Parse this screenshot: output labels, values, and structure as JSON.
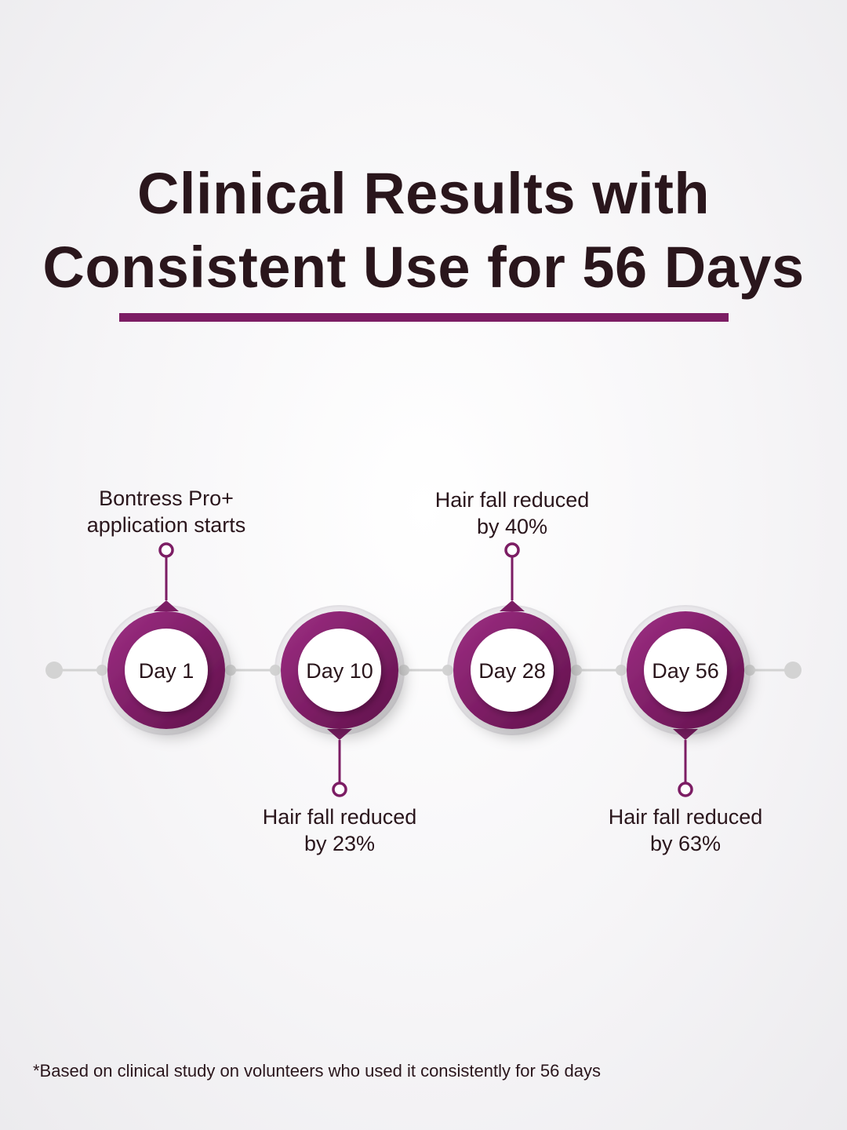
{
  "title": {
    "line1": "Clinical Results with",
    "line2": "Consistent Use for 56 Days"
  },
  "milestones": [
    {
      "day": "Day 1",
      "callout_line1": "Bontress Pro+",
      "callout_line2": "application starts",
      "position": "top"
    },
    {
      "day": "Day 10",
      "callout_line1": "Hair fall reduced",
      "callout_line2": "by 23%",
      "position": "bottom"
    },
    {
      "day": "Day 28",
      "callout_line1": "Hair fall reduced",
      "callout_line2": "by 40%",
      "position": "top"
    },
    {
      "day": "Day 56",
      "callout_line1": "Hair fall reduced",
      "callout_line2": "by 63%",
      "position": "bottom"
    }
  ],
  "footnote": "*Based on clinical study on volunteers who used it consistently for 56 days",
  "colors": {
    "accent": "#7c1d64",
    "accent_light": "#9e2f84",
    "text": "#2a161c",
    "connector": "#cfcfcf"
  }
}
